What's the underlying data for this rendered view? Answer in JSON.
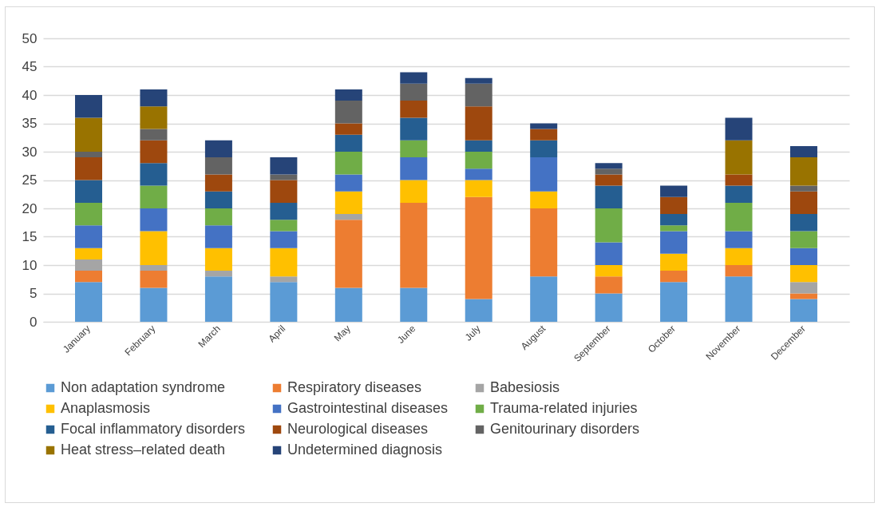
{
  "chart_data": {
    "type": "bar",
    "stacked": true,
    "categories": [
      "January",
      "February",
      "March",
      "April",
      "May",
      "June",
      "July",
      "August",
      "September",
      "October",
      "November",
      "December"
    ],
    "ylim": [
      0,
      50
    ],
    "yticks": [
      0,
      5,
      10,
      15,
      20,
      25,
      30,
      35,
      40,
      45,
      50
    ],
    "grid": "y",
    "legend": "bottom",
    "series": [
      {
        "name": "Non adaptation syndrome",
        "color": "#5b9bd5",
        "values": [
          7,
          6,
          8,
          7,
          6,
          6,
          4,
          8,
          5,
          7,
          8,
          4
        ]
      },
      {
        "name": "Respiratory diseases",
        "color": "#ed7d31",
        "values": [
          2,
          3,
          null,
          null,
          12,
          15,
          18,
          12,
          3,
          2,
          2,
          1
        ]
      },
      {
        "name": "Babesiosis",
        "color": "#a5a5a5",
        "values": [
          2,
          1,
          1,
          1,
          1,
          null,
          null,
          null,
          null,
          null,
          null,
          2
        ]
      },
      {
        "name": "Anaplasmosis",
        "color": "#ffc000",
        "values": [
          2,
          6,
          4,
          5,
          4,
          4,
          3,
          3,
          2,
          3,
          3,
          3
        ]
      },
      {
        "name": "Gastrointestinal diseases",
        "color": "#4472c4",
        "values": [
          4,
          4,
          4,
          3,
          3,
          4,
          2,
          6,
          4,
          4,
          3,
          3
        ]
      },
      {
        "name": "Trauma-related injuries",
        "color": "#70ad47",
        "values": [
          4,
          4,
          3,
          2,
          4,
          3,
          3,
          null,
          6,
          1,
          5,
          3
        ]
      },
      {
        "name": "Focal inflammatory disorders",
        "color": "#255e91",
        "values": [
          4,
          4,
          3,
          3,
          3,
          4,
          2,
          3,
          4,
          2,
          3,
          3
        ]
      },
      {
        "name": "Neurological diseases",
        "color": "#9e480e",
        "values": [
          4,
          4,
          3,
          4,
          2,
          3,
          6,
          2,
          2,
          3,
          2,
          4
        ]
      },
      {
        "name": "Genitourinary disorders",
        "color": "#636363",
        "values": [
          1,
          2,
          3,
          1,
          4,
          3,
          4,
          null,
          1,
          null,
          null,
          1
        ]
      },
      {
        "name": "Heat stress–related death",
        "color": "#997300",
        "values": [
          6,
          4,
          null,
          null,
          null,
          null,
          null,
          null,
          null,
          null,
          6,
          5
        ]
      },
      {
        "name": "Undetermined diagnosis",
        "color": "#264478",
        "values": [
          4,
          3,
          3,
          3,
          2,
          2,
          1,
          1,
          1,
          2,
          4,
          2
        ]
      }
    ]
  }
}
